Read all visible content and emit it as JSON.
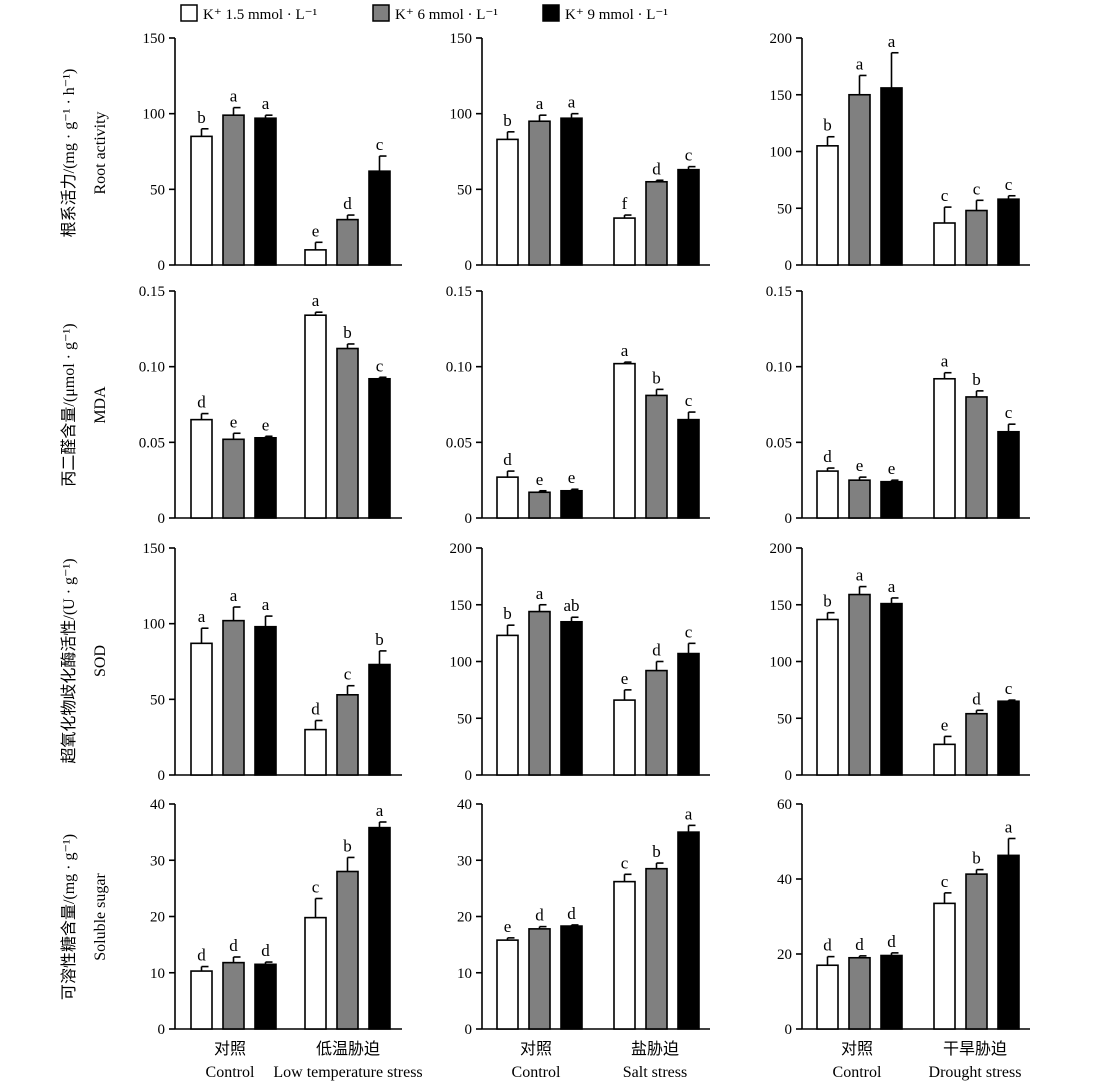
{
  "legend": {
    "items": [
      {
        "label": "K⁺ 1.5 mmol · L⁻¹",
        "color": "#ffffff"
      },
      {
        "label": "K⁺ 6 mmol · L⁻¹",
        "color": "#808080"
      },
      {
        "label": "K⁺ 9 mmol · L⁻¹",
        "color": "#000000"
      }
    ]
  },
  "row_labels": [
    {
      "cn": "根系活力/(mg · g⁻¹ · h⁻¹)",
      "en": "Root activity"
    },
    {
      "cn": "丙二醛含量/(μmol · g⁻¹)",
      "en": "MDA"
    },
    {
      "cn": "超氧化物歧化酶活性/(U · g⁻¹)",
      "en": "SOD"
    },
    {
      "cn": "可溶性糖含量/(mg · g⁻¹)",
      "en": "Soluble sugar"
    }
  ],
  "column_labels": [
    [
      {
        "cn": "对照",
        "en": "Control"
      },
      {
        "cn": "低温胁迫",
        "en": "Low temperature stress"
      }
    ],
    [
      {
        "cn": "对照",
        "en": "Control"
      },
      {
        "cn": "盐胁迫",
        "en": "Salt stress"
      }
    ],
    [
      {
        "cn": "对照",
        "en": "Control"
      },
      {
        "cn": "干旱胁迫",
        "en": "Drought stress"
      }
    ]
  ],
  "chart_data": [
    {
      "type": "bar",
      "row": 0,
      "col": 0,
      "ylim": [
        0,
        150
      ],
      "yticks": [
        "0",
        "50",
        "100",
        "150"
      ],
      "ytick_values": [
        0,
        50,
        100,
        150
      ],
      "groups": [
        {
          "values": [
            85,
            99,
            97
          ],
          "errors": [
            5,
            5,
            2
          ],
          "letters": [
            "b",
            "a",
            "a"
          ]
        },
        {
          "values": [
            10,
            30,
            62
          ],
          "errors": [
            5,
            3,
            10
          ],
          "letters": [
            "e",
            "d",
            "c"
          ]
        }
      ]
    },
    {
      "type": "bar",
      "row": 0,
      "col": 1,
      "ylim": [
        0,
        150
      ],
      "yticks": [
        "0",
        "50",
        "100",
        "150"
      ],
      "ytick_values": [
        0,
        50,
        100,
        150
      ],
      "groups": [
        {
          "values": [
            83,
            95,
            97
          ],
          "errors": [
            5,
            4,
            3
          ],
          "letters": [
            "b",
            "a",
            "a"
          ]
        },
        {
          "values": [
            31,
            55,
            63
          ],
          "errors": [
            2,
            1,
            2
          ],
          "letters": [
            "f",
            "d",
            "c"
          ]
        }
      ]
    },
    {
      "type": "bar",
      "row": 0,
      "col": 2,
      "ylim": [
        0,
        200
      ],
      "yticks": [
        "0",
        "50",
        "100",
        "150",
        "200"
      ],
      "ytick_values": [
        0,
        50,
        100,
        150,
        200
      ],
      "groups": [
        {
          "values": [
            105,
            150,
            156
          ],
          "errors": [
            8,
            17,
            31
          ],
          "letters": [
            "b",
            "a",
            "a"
          ]
        },
        {
          "values": [
            37,
            48,
            58
          ],
          "errors": [
            14,
            9,
            3
          ],
          "letters": [
            "c",
            "c",
            "c"
          ]
        }
      ]
    },
    {
      "type": "bar",
      "row": 1,
      "col": 0,
      "ylim": [
        0,
        0.15
      ],
      "yticks": [
        "0",
        "0.05",
        "0.10",
        "0.15"
      ],
      "ytick_values": [
        0,
        0.05,
        0.1,
        0.15
      ],
      "groups": [
        {
          "values": [
            0.065,
            0.052,
            0.053
          ],
          "errors": [
            0.004,
            0.004,
            0.001
          ],
          "letters": [
            "d",
            "e",
            "e"
          ]
        },
        {
          "values": [
            0.134,
            0.112,
            0.092
          ],
          "errors": [
            0.002,
            0.003,
            0.001
          ],
          "letters": [
            "a",
            "b",
            "c"
          ]
        }
      ]
    },
    {
      "type": "bar",
      "row": 1,
      "col": 1,
      "ylim": [
        0,
        0.15
      ],
      "yticks": [
        "0",
        "0.05",
        "0.10",
        "0.15"
      ],
      "ytick_values": [
        0,
        0.05,
        0.1,
        0.15
      ],
      "groups": [
        {
          "values": [
            0.027,
            0.017,
            0.018
          ],
          "errors": [
            0.004,
            0.001,
            0.001
          ],
          "letters": [
            "d",
            "e",
            "e"
          ]
        },
        {
          "values": [
            0.102,
            0.081,
            0.065
          ],
          "errors": [
            0.001,
            0.004,
            0.005
          ],
          "letters": [
            "a",
            "b",
            "c"
          ]
        }
      ]
    },
    {
      "type": "bar",
      "row": 1,
      "col": 2,
      "ylim": [
        0,
        0.15
      ],
      "yticks": [
        "0",
        "0.05",
        "0.10",
        "0.15"
      ],
      "ytick_values": [
        0,
        0.05,
        0.1,
        0.15
      ],
      "groups": [
        {
          "values": [
            0.031,
            0.025,
            0.024
          ],
          "errors": [
            0.002,
            0.002,
            0.001
          ],
          "letters": [
            "d",
            "e",
            "e"
          ]
        },
        {
          "values": [
            0.092,
            0.08,
            0.057
          ],
          "errors": [
            0.004,
            0.004,
            0.005
          ],
          "letters": [
            "a",
            "b",
            "c"
          ]
        }
      ]
    },
    {
      "type": "bar",
      "row": 2,
      "col": 0,
      "ylim": [
        0,
        150
      ],
      "yticks": [
        "0",
        "50",
        "100",
        "150"
      ],
      "ytick_values": [
        0,
        50,
        100,
        150
      ],
      "groups": [
        {
          "values": [
            87,
            102,
            98
          ],
          "errors": [
            10,
            9,
            7
          ],
          "letters": [
            "a",
            "a",
            "a"
          ]
        },
        {
          "values": [
            30,
            53,
            73
          ],
          "errors": [
            6,
            6,
            9
          ],
          "letters": [
            "d",
            "c",
            "b"
          ]
        }
      ]
    },
    {
      "type": "bar",
      "row": 2,
      "col": 1,
      "ylim": [
        0,
        200
      ],
      "yticks": [
        "0",
        "50",
        "100",
        "150",
        "200"
      ],
      "ytick_values": [
        0,
        50,
        100,
        150,
        200
      ],
      "groups": [
        {
          "values": [
            123,
            144,
            135
          ],
          "errors": [
            9,
            6,
            4
          ],
          "letters": [
            "b",
            "a",
            "ab"
          ]
        },
        {
          "values": [
            66,
            92,
            107
          ],
          "errors": [
            9,
            8,
            9
          ],
          "letters": [
            "e",
            "d",
            "c"
          ]
        }
      ]
    },
    {
      "type": "bar",
      "row": 2,
      "col": 2,
      "ylim": [
        0,
        200
      ],
      "yticks": [
        "0",
        "50",
        "100",
        "150",
        "200"
      ],
      "ytick_values": [
        0,
        50,
        100,
        150,
        200
      ],
      "groups": [
        {
          "values": [
            137,
            159,
            151
          ],
          "errors": [
            6,
            7,
            5
          ],
          "letters": [
            "b",
            "a",
            "a"
          ]
        },
        {
          "values": [
            27,
            54,
            65
          ],
          "errors": [
            7,
            3,
            1
          ],
          "letters": [
            "e",
            "d",
            "c"
          ]
        }
      ]
    },
    {
      "type": "bar",
      "row": 3,
      "col": 0,
      "ylim": [
        0,
        40
      ],
      "yticks": [
        "0",
        "10",
        "20",
        "30",
        "40"
      ],
      "ytick_values": [
        0,
        10,
        20,
        30,
        40
      ],
      "groups": [
        {
          "values": [
            10.3,
            11.8,
            11.5
          ],
          "errors": [
            0.8,
            1.0,
            0.4
          ],
          "letters": [
            "d",
            "d",
            "d"
          ]
        },
        {
          "values": [
            19.8,
            28.0,
            35.8
          ],
          "errors": [
            3.4,
            2.5,
            1.0
          ],
          "letters": [
            "c",
            "b",
            "a"
          ]
        }
      ]
    },
    {
      "type": "bar",
      "row": 3,
      "col": 1,
      "ylim": [
        0,
        40
      ],
      "yticks": [
        "0",
        "10",
        "20",
        "30",
        "40"
      ],
      "ytick_values": [
        0,
        10,
        20,
        30,
        40
      ],
      "groups": [
        {
          "values": [
            15.8,
            17.8,
            18.3
          ],
          "errors": [
            0.4,
            0.4,
            0.2
          ],
          "letters": [
            "e",
            "d",
            "d"
          ]
        },
        {
          "values": [
            26.2,
            28.5,
            35.0
          ],
          "errors": [
            1.3,
            1.0,
            1.2
          ],
          "letters": [
            "c",
            "b",
            "a"
          ]
        }
      ]
    },
    {
      "type": "bar",
      "row": 3,
      "col": 2,
      "ylim": [
        0,
        60
      ],
      "yticks": [
        "0",
        "20",
        "40",
        "60"
      ],
      "ytick_values": [
        0,
        20,
        40,
        60
      ],
      "groups": [
        {
          "values": [
            17.0,
            19.0,
            19.6
          ],
          "errors": [
            2.3,
            0.5,
            0.7
          ],
          "letters": [
            "d",
            "d",
            "d"
          ]
        },
        {
          "values": [
            33.5,
            41.3,
            46.3
          ],
          "errors": [
            2.8,
            1.2,
            4.5
          ],
          "letters": [
            "c",
            "b",
            "a"
          ]
        }
      ]
    }
  ]
}
